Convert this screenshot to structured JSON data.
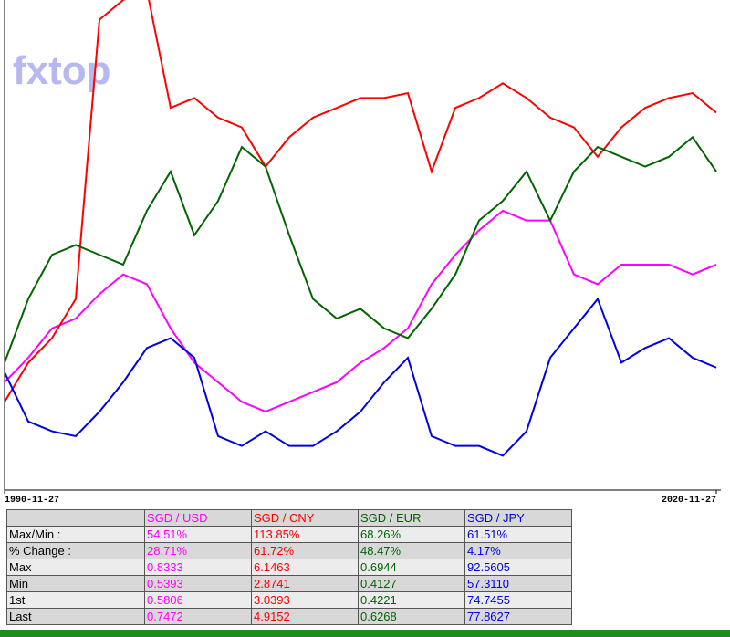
{
  "watermark": "fxtop",
  "chart_data": {
    "type": "line",
    "x": [
      1990.9,
      1991.9,
      1992.9,
      1993.9,
      1994.9,
      1995.9,
      1996.9,
      1997.9,
      1998.9,
      1999.9,
      2000.9,
      2001.9,
      2002.9,
      2003.9,
      2004.9,
      2005.9,
      2006.9,
      2007.9,
      2008.9,
      2009.9,
      2010.9,
      2011.9,
      2012.9,
      2013.9,
      2014.9,
      2015.9,
      2016.9,
      2017.9,
      2018.9,
      2019.9,
      2020.9
    ],
    "xlim": [
      1990.9,
      2020.9
    ],
    "xticks": [
      {
        "value": 1990.9,
        "label": "1990-11-27"
      },
      {
        "value": 2020.9,
        "label": "2020-11-27"
      }
    ],
    "ylim": [
      0,
      100
    ],
    "series": [
      {
        "name": "SGD / USD",
        "color": "#ff00ff",
        "values": [
          22,
          27,
          33,
          35,
          40,
          44,
          42,
          33,
          26,
          22,
          18,
          16,
          18,
          20,
          22,
          26,
          29,
          33,
          42,
          48,
          53,
          57,
          55,
          55,
          44,
          42,
          46,
          46,
          46,
          44,
          46
        ]
      },
      {
        "name": "SGD / CNY",
        "color": "#ff0000",
        "values": [
          18,
          26,
          31,
          39,
          96,
          100,
          102,
          78,
          80,
          76,
          74,
          66,
          72,
          76,
          78,
          80,
          80,
          81,
          65,
          78,
          80,
          83,
          80,
          76,
          74,
          68,
          74,
          78,
          80,
          81,
          77
        ]
      },
      {
        "name": "SGD / EUR",
        "color": "#006400",
        "values": [
          26,
          39,
          48,
          50,
          48,
          46,
          57,
          65,
          52,
          59,
          70,
          66,
          52,
          39,
          35,
          37,
          33,
          31,
          37,
          44,
          55,
          59,
          65,
          55,
          65,
          70,
          68,
          66,
          68,
          72,
          65
        ]
      },
      {
        "name": "SGD / JPY",
        "color": "#0000e0",
        "values": [
          24,
          14,
          12,
          11,
          16,
          22,
          29,
          31,
          27,
          11,
          9,
          12,
          9,
          9,
          12,
          16,
          22,
          27,
          11,
          9,
          9,
          7,
          12,
          27,
          33,
          39,
          26,
          29,
          31,
          27,
          25
        ]
      }
    ]
  },
  "table": {
    "rows": [
      [
        "Max/Min :",
        "54.51%",
        "113.85%",
        "68.26%",
        "61.51%"
      ],
      [
        "% Change :",
        "28.71%",
        "61.72%",
        "48.47%",
        "4.17%"
      ],
      [
        "Max",
        "0.8333",
        "6.1463",
        "0.6944",
        "92.5605"
      ],
      [
        "Min",
        "0.5393",
        "2.8741",
        "0.4127",
        "57.3110"
      ],
      [
        "1st",
        "0.5806",
        "3.0393",
        "0.4221",
        "74.7455"
      ],
      [
        "Last",
        "0.7472",
        "4.9152",
        "0.6268",
        "77.8627"
      ]
    ]
  }
}
